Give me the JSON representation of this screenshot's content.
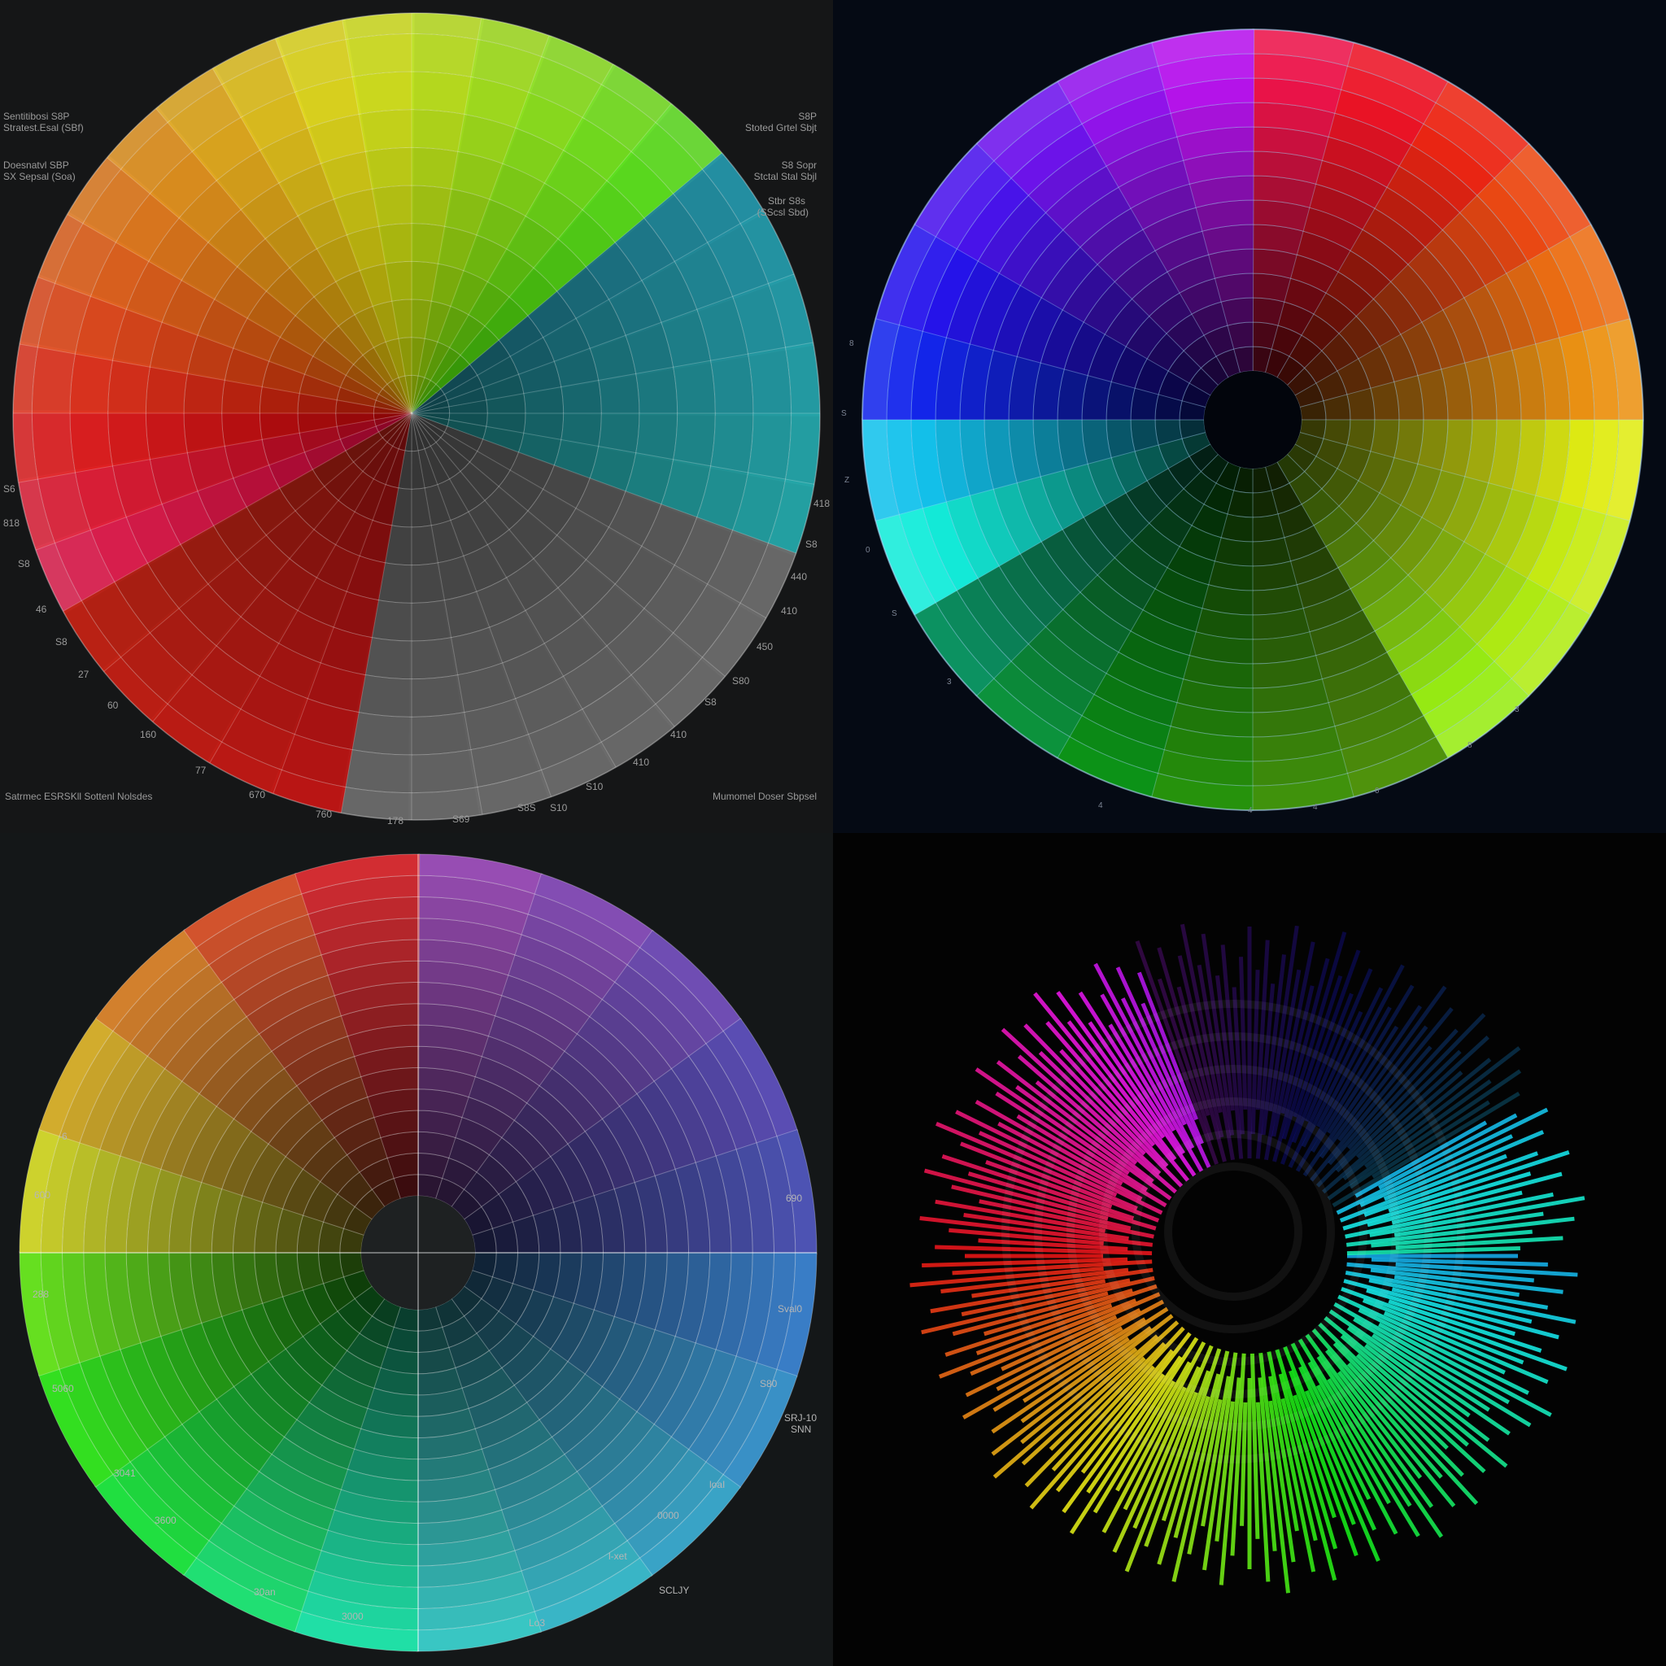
{
  "panels": {
    "top_left": {
      "header_left_1": "Sentitibosi S8P",
      "header_left_2": "Stratest.Esal (SBf)",
      "header_left_3": "Doesnatvl SBP",
      "header_left_4": "SX Sepsal (Soa)",
      "header_right_1": "S8P",
      "header_right_2": "Stoted Grtel Sbjt",
      "header_right_3": "S8 Sopr",
      "header_right_4": "Stctal Stal Sbjl",
      "header_right_5": "Stbr S8s",
      "header_right_6": "(SScsl Sbd)",
      "footer_left": "Satrmec  ESRSKll Sottenl Nolsdes",
      "footer_right": "Mumomel Doser  Sbpsel",
      "rim_labels_left": [
        "S6",
        "818",
        "S8",
        "46",
        "S8",
        "27",
        "60",
        "160",
        "77",
        "670"
      ],
      "rim_labels_bottom": [
        "760",
        "178",
        "S69",
        "S8S"
      ],
      "rim_labels_right": [
        "418",
        "S8",
        "440",
        "410",
        "450",
        "S80",
        "S8",
        "410",
        "410",
        "S10",
        "S10"
      ],
      "colors": {
        "background": "#151617",
        "grid": "#ffffff"
      }
    },
    "top_right": {
      "rim_labels": [
        "8",
        "S",
        "Z",
        "0",
        "S",
        "3",
        "4",
        "4",
        "4",
        "0",
        "8",
        "3"
      ],
      "colors": {
        "background": "#050a14",
        "hub": "#02050c"
      }
    },
    "bottom_left": {
      "left_labels": [
        "-6",
        "600",
        "288",
        "5060"
      ],
      "bottom_labels": [
        "3041",
        "3600",
        "30an",
        "3000",
        "Lo3",
        "l-xet"
      ],
      "right_labels": [
        "690",
        "Sval0",
        "S80",
        "SRJ-10",
        "SNN",
        "loaI",
        "0000"
      ],
      "footer_right": "SCLJY",
      "colors": {
        "background": "#141718",
        "hub": "#1e2122"
      }
    },
    "bottom_right": {
      "colors": {
        "background": "#030303"
      }
    }
  }
}
